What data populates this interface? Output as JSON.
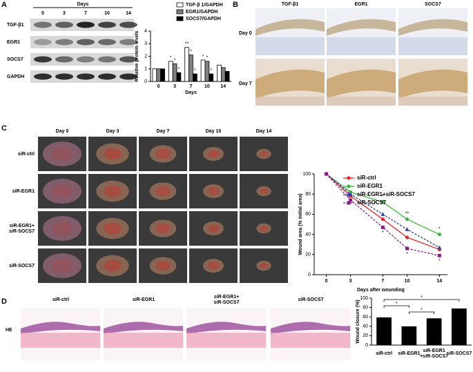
{
  "panel_labels": [
    "A",
    "B",
    "C",
    "D"
  ],
  "western_blot": {
    "days_label": "Days",
    "lanes": [
      "0",
      "3",
      "7",
      "10",
      "14"
    ],
    "proteins": [
      "TGF-β1",
      "EGR1",
      "SOCS7",
      "GAPDH"
    ]
  },
  "ihc": {
    "columns": [
      "TGF-β1",
      "EGR1",
      "SOCS7"
    ],
    "rows": [
      "Day 0",
      "Day 7"
    ]
  },
  "wound_photos": {
    "columns": [
      "Day 0",
      "Day 3",
      "Day 7",
      "Day 10",
      "Day 14"
    ],
    "rows": [
      "siR-ctrl",
      "siR-EGR1",
      "siR-EGR1+\nsiR-SOCS7",
      "siR-SOCS7"
    ]
  },
  "he_staining": {
    "columns": [
      "siR-ctrl",
      "siR-EGR1",
      "siR-EGR1+\nsiR-SOCS7",
      "siR-SOCS7"
    ],
    "rows": [
      "HE"
    ]
  },
  "chart_data": [
    {
      "type": "bar",
      "categories": [
        "0",
        "3",
        "7",
        "10",
        "14"
      ],
      "x_label": "Days",
      "y_label": "Relative protein levels",
      "ylim": [
        0,
        4
      ],
      "yticks": [
        0,
        1,
        2,
        3,
        4
      ],
      "legend": "top",
      "series": [
        {
          "name": "TGF-β 1/GAPDH",
          "color": "#ffffff",
          "values": [
            1.0,
            1.6,
            2.7,
            1.7,
            1.3
          ]
        },
        {
          "name": "EGR1/GAPDH",
          "color": "#808080",
          "values": [
            1.0,
            1.4,
            2.1,
            1.6,
            1.1
          ]
        },
        {
          "name": "SOCS7/GAPDH",
          "color": "#000000",
          "values": [
            1.0,
            0.7,
            0.6,
            0.6,
            0.8
          ]
        }
      ],
      "annotations": [
        {
          "text": "*",
          "series": 0,
          "point": 1
        },
        {
          "text": "*",
          "series": 1,
          "point": 1
        },
        {
          "text": "*",
          "series": 2,
          "point": 1
        },
        {
          "text": "**",
          "series": 0,
          "point": 2
        },
        {
          "text": "*",
          "series": 1,
          "point": 2
        },
        {
          "text": "*",
          "series": 2,
          "point": 2
        },
        {
          "text": "*",
          "series": 0,
          "point": 3
        },
        {
          "text": "*",
          "series": 1,
          "point": 3
        },
        {
          "text": "*",
          "series": 2,
          "point": 3
        }
      ]
    },
    {
      "type": "line",
      "x": [
        0,
        3,
        7,
        10,
        14
      ],
      "x_label": "Days after wounding",
      "y_label": "Wound area (% initial area)",
      "xlim": [
        -1.5,
        15
      ],
      "xticks": [
        0,
        3,
        7,
        10,
        14
      ],
      "ylim": [
        0,
        100
      ],
      "yticks": [
        0,
        20,
        40,
        60,
        80,
        100
      ],
      "legend": "upper right",
      "series": [
        {
          "name": "siR-ctrl",
          "color": "#e8262a",
          "dashed": false,
          "marker": "circle",
          "values": [
            100,
            78,
            55,
            37,
            25
          ]
        },
        {
          "name": "siR-EGR1",
          "color": "#3cb83c",
          "dashed": false,
          "marker": "circle",
          "values": [
            100,
            82,
            72,
            55,
            40
          ]
        },
        {
          "name": "siR-EGR1+siR-SOCS7",
          "color": "#2a3fb0",
          "dashed": true,
          "marker": "triangle",
          "values": [
            100,
            80,
            60,
            45,
            27
          ]
        },
        {
          "name": "siR-SOCS7",
          "color": "#8a1a8a",
          "dashed": true,
          "marker": "square",
          "values": [
            100,
            74,
            47,
            26,
            19
          ]
        }
      ],
      "annotations": [
        {
          "text": "*",
          "series": 1,
          "point": 2
        },
        {
          "text": "**",
          "series": 1,
          "point": 3
        },
        {
          "text": "*",
          "series": 1,
          "point": 4
        },
        {
          "text": "*",
          "series": 3,
          "point": 2
        },
        {
          "text": "*",
          "series": 3,
          "point": 3
        },
        {
          "text": "*",
          "series": 3,
          "point": 4
        }
      ]
    },
    {
      "type": "bar",
      "categories": [
        "siR-ctrl",
        "siR-EGR1",
        "siR-EGR1\n+siR-SOCS7",
        "siR-SOCS7"
      ],
      "y_label": "Wound closure (%)",
      "ylim": [
        0,
        100
      ],
      "yticks": [
        0,
        20,
        40,
        60,
        80,
        100
      ],
      "color": "#000000",
      "values": [
        59,
        40,
        57,
        78
      ],
      "brackets": [
        {
          "text": "*",
          "from": 0,
          "to": 3
        },
        {
          "text": "*",
          "from": 0,
          "to": 1
        },
        {
          "text": "*",
          "from": 1,
          "to": 2
        }
      ]
    }
  ]
}
